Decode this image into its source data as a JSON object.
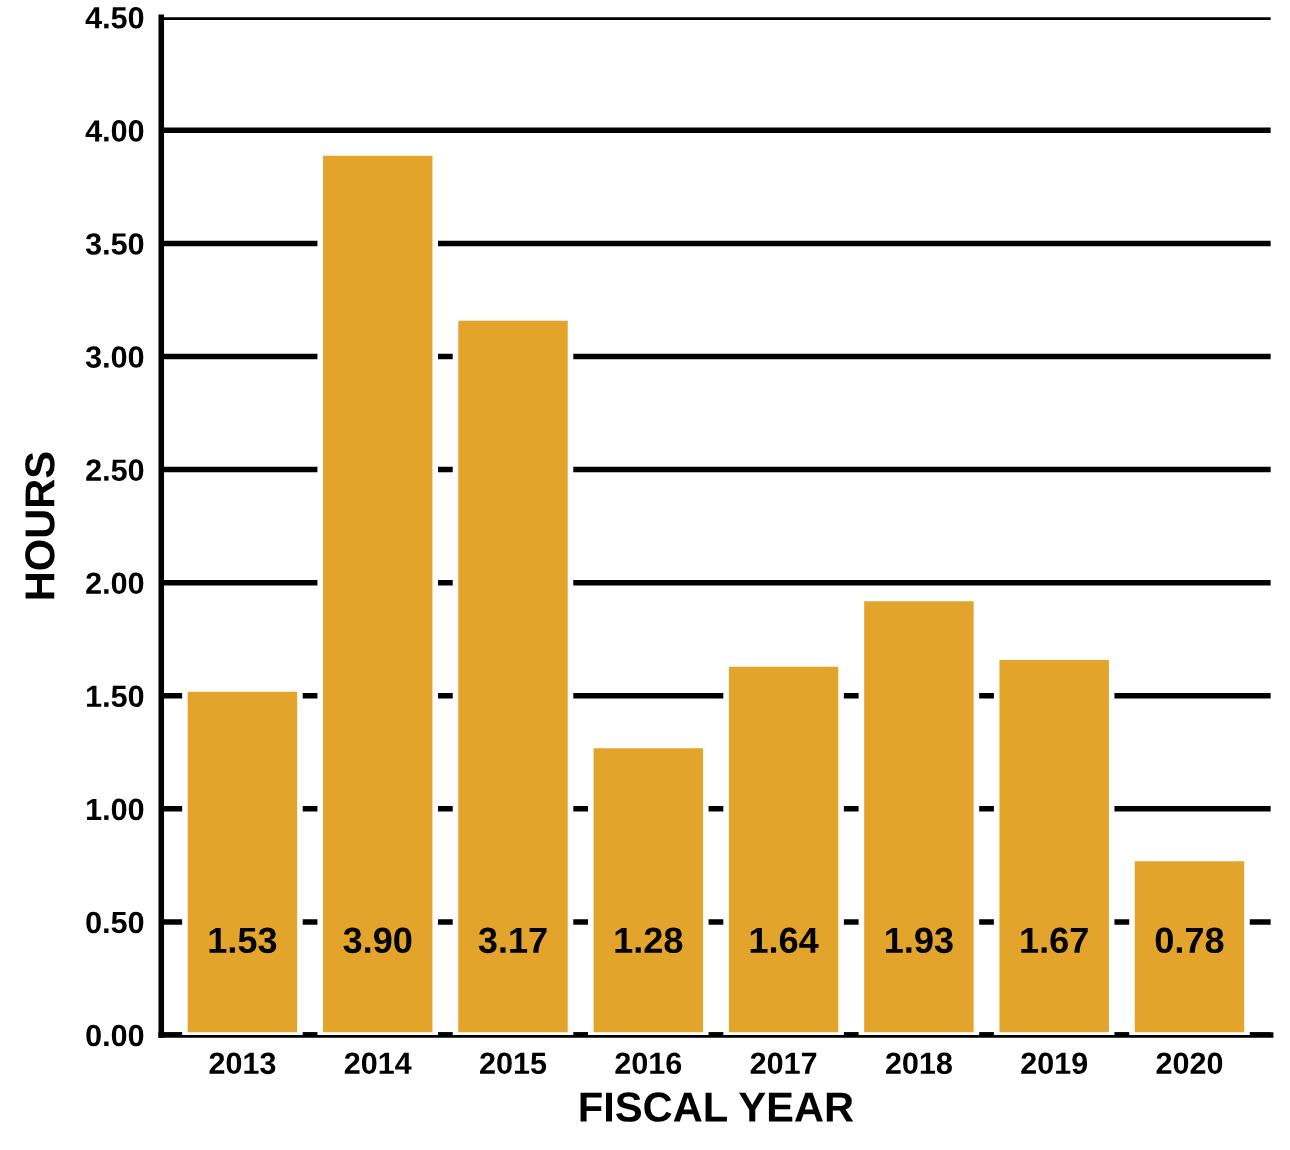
{
  "chart_data": {
    "type": "bar",
    "xlabel": "FISCAL YEAR",
    "ylabel": "HOURS",
    "categories": [
      "2013",
      "2014",
      "2015",
      "2016",
      "2017",
      "2018",
      "2019",
      "2020"
    ],
    "values": [
      1.53,
      3.9,
      3.17,
      1.28,
      1.64,
      1.93,
      1.67,
      0.78
    ],
    "value_labels": [
      "1.53",
      "3.90",
      "3.17",
      "1.28",
      "1.64",
      "1.93",
      "1.67",
      "0.78"
    ],
    "color": "#e2a42a",
    "ylim": [
      0,
      4.5
    ],
    "yticks": [
      {
        "value": 0,
        "label": "0.00"
      },
      {
        "value": 0.5,
        "label": "0.50"
      },
      {
        "value": 1,
        "label": "1.00"
      },
      {
        "value": 1.5,
        "label": "1.50"
      },
      {
        "value": 2,
        "label": "2.00"
      },
      {
        "value": 2.5,
        "label": "2.50"
      },
      {
        "value": 3,
        "label": "3.00"
      },
      {
        "value": 3.5,
        "label": "3.50"
      },
      {
        "value": 4,
        "label": "4.00"
      },
      {
        "value": 4.5,
        "label": "4.50"
      }
    ],
    "grid": "y",
    "legend": false
  }
}
